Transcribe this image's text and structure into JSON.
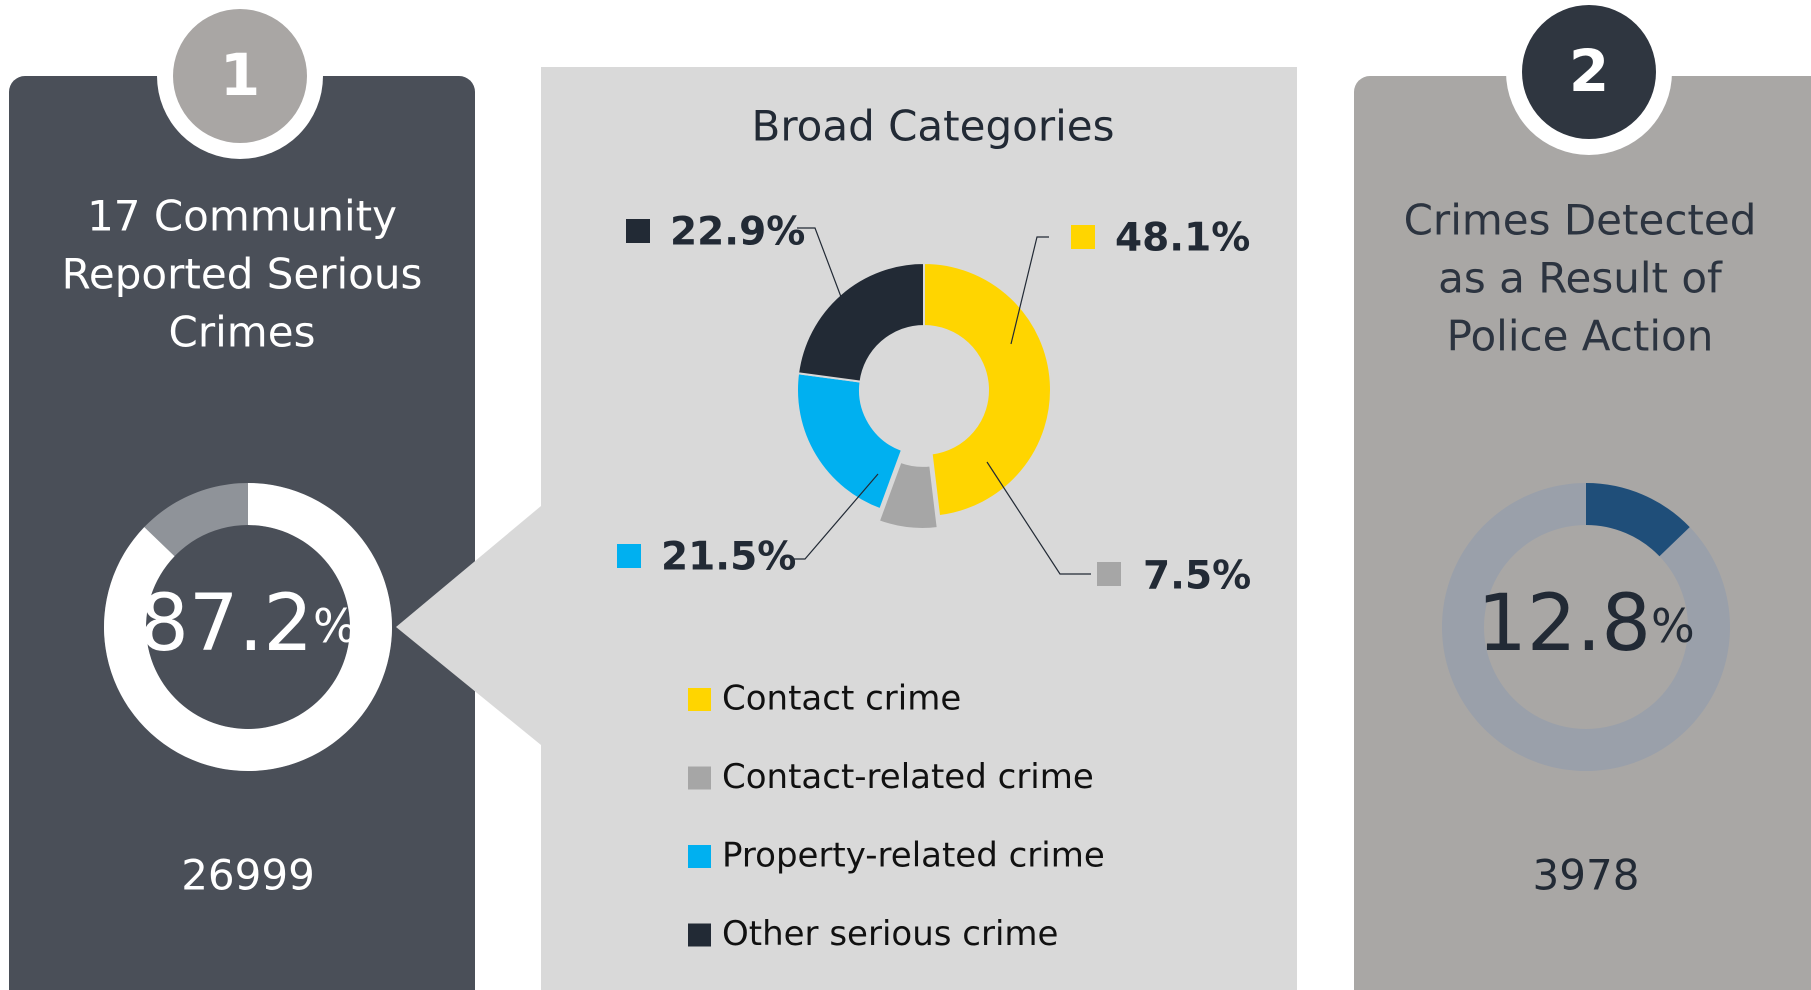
{
  "chart_data": [
    {
      "type": "donut",
      "badge": "1",
      "title": [
        "17 Community",
        "Reported Serious",
        "Crimes"
      ],
      "values": [
        87.2
      ],
      "value_labels": [
        "87.2%"
      ],
      "color": "#ffffff",
      "track_color": "#8f9399",
      "total": "26999"
    },
    {
      "type": "pie",
      "title": "Broad Categories",
      "categories": [
        "Contact crime",
        "Contact-related crime",
        "Property-related crime",
        "Other serious crime"
      ],
      "values": [
        48.1,
        7.5,
        21.5,
        22.9
      ],
      "value_labels": [
        "48.1%",
        "7.5%",
        "21.5%",
        "22.9%"
      ],
      "colors": [
        "#ffd500",
        "#a6a6a6",
        "#00b0f0",
        "#222a35"
      ]
    },
    {
      "type": "donut",
      "badge": "2",
      "title": [
        "Crimes Detected",
        "as a Result of",
        "Police Action"
      ],
      "values": [
        12.8
      ],
      "value_labels": [
        "12.8%"
      ],
      "color": "#1f4e79",
      "track_color": "#9aa0aa",
      "total": "3978"
    }
  ]
}
